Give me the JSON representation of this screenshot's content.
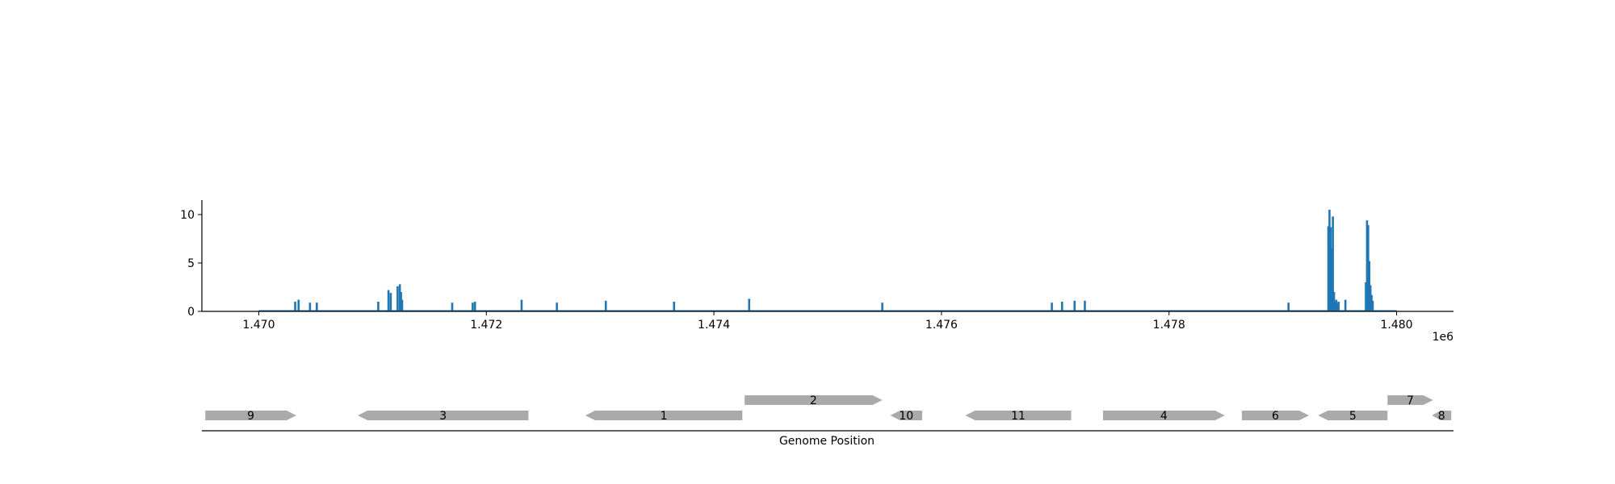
{
  "chart_data": [
    {
      "type": "bar",
      "title": "",
      "xlabel": "",
      "ylabel": "",
      "xlim": [
        1469500,
        1480500
      ],
      "ylim": [
        0,
        11.5
      ],
      "x_offset_label": "1e6",
      "x_ticks": [
        1470000,
        1472000,
        1474000,
        1476000,
        1478000,
        1480000
      ],
      "x_tick_labels": [
        "1.470",
        "1.472",
        "1.474",
        "1.476",
        "1.478",
        "1.480"
      ],
      "y_ticks": [
        0,
        5,
        10
      ],
      "y_tick_labels": [
        "0",
        "5",
        "10"
      ],
      "grid": false,
      "color": "#1f77b4",
      "coverage_range": [
        1470000,
        1480000
      ],
      "x": [
        1470320,
        1470350,
        1470450,
        1470510,
        1471050,
        1471140,
        1471160,
        1471220,
        1471240,
        1471250,
        1471260,
        1471700,
        1471880,
        1471900,
        1472310,
        1472620,
        1473050,
        1473650,
        1474310,
        1475480,
        1476970,
        1477060,
        1477170,
        1477260,
        1479050,
        1479400,
        1479410,
        1479420,
        1479430,
        1479440,
        1479450,
        1479460,
        1479470,
        1479480,
        1479490,
        1479550,
        1479730,
        1479740,
        1479750,
        1479760,
        1479770,
        1479780,
        1479790
      ],
      "values": [
        1.0,
        1.2,
        0.9,
        0.9,
        1.0,
        2.2,
        1.9,
        2.6,
        2.8,
        2.0,
        1.2,
        0.9,
        0.9,
        1.0,
        1.2,
        0.9,
        1.1,
        1.0,
        1.3,
        0.9,
        0.9,
        1.0,
        1.1,
        1.1,
        0.9,
        8.8,
        10.5,
        8.7,
        6.5,
        9.8,
        2.0,
        1.0,
        1.2,
        0.8,
        1.0,
        1.2,
        3.0,
        9.4,
        8.9,
        5.2,
        2.7,
        1.7,
        1.1
      ]
    },
    {
      "type": "gene-track",
      "xlabel": "Genome Position",
      "xlim": [
        1469500,
        1480500
      ],
      "color": "#aaaaaa",
      "genes": [
        {
          "label": "9",
          "start": 1469530,
          "end": 1470330,
          "strand": "+",
          "lane": 0
        },
        {
          "label": "3",
          "start": 1470870,
          "end": 1472370,
          "strand": "-",
          "lane": 0
        },
        {
          "label": "1",
          "start": 1472870,
          "end": 1474250,
          "strand": "-",
          "lane": 0
        },
        {
          "label": "2",
          "start": 1474270,
          "end": 1475480,
          "strand": "+",
          "lane": 1
        },
        {
          "label": "10",
          "start": 1475550,
          "end": 1475830,
          "strand": "-",
          "lane": 0
        },
        {
          "label": "11",
          "start": 1476210,
          "end": 1477140,
          "strand": "-",
          "lane": 0
        },
        {
          "label": "4",
          "start": 1477420,
          "end": 1478490,
          "strand": "+",
          "lane": 0
        },
        {
          "label": "6",
          "start": 1478640,
          "end": 1479230,
          "strand": "+",
          "lane": 0
        },
        {
          "label": "5",
          "start": 1479310,
          "end": 1479920,
          "strand": "-",
          "lane": 0
        },
        {
          "label": "7",
          "start": 1479920,
          "end": 1480320,
          "strand": "+",
          "lane": 1
        },
        {
          "label": "8",
          "start": 1480310,
          "end": 1480480,
          "strand": "-",
          "lane": 0
        }
      ]
    }
  ]
}
